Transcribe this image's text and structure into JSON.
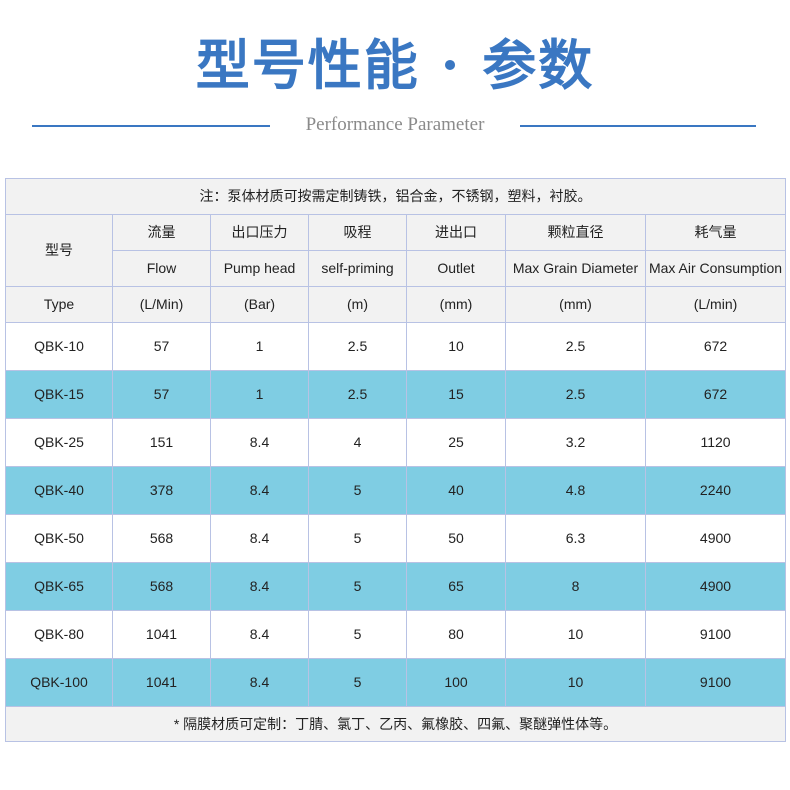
{
  "header": {
    "title": "型号性能 · 参数",
    "subtitle": "Performance Parameter",
    "accent": "#3a77c2"
  },
  "table": {
    "note": "注：泵体材质可按需定制铸铁，铝合金，不锈钢，塑料，衬胶。",
    "model_cn": "型号",
    "model_en": "Type",
    "columns": [
      {
        "cn": "流量",
        "en": "Flow",
        "unit": "(L/Min)"
      },
      {
        "cn": "出口压力",
        "en": "Pump head",
        "unit": "(Bar)"
      },
      {
        "cn": "吸程",
        "en": "self-priming",
        "unit": "(m)"
      },
      {
        "cn": "进出口",
        "en": "Outlet",
        "unit": "(mm)"
      },
      {
        "cn": "颗粒直径",
        "en": "Max Grain Diameter",
        "unit": "(mm)"
      },
      {
        "cn": "耗气量",
        "en": "Max Air Consumption",
        "unit": "(L/min)"
      }
    ],
    "rows": [
      [
        "QBK-10",
        "57",
        "1",
        "2.5",
        "10",
        "2.5",
        "672"
      ],
      [
        "QBK-15",
        "57",
        "1",
        "2.5",
        "15",
        "2.5",
        "672"
      ],
      [
        "QBK-25",
        "151",
        "8.4",
        "4",
        "25",
        "3.2",
        "1120"
      ],
      [
        "QBK-40",
        "378",
        "8.4",
        "5",
        "40",
        "4.8",
        "2240"
      ],
      [
        "QBK-50",
        "568",
        "8.4",
        "5",
        "50",
        "6.3",
        "4900"
      ],
      [
        "QBK-65",
        "568",
        "8.4",
        "5",
        "65",
        "8",
        "4900"
      ],
      [
        "QBK-80",
        "1041",
        "8.4",
        "5",
        "80",
        "10",
        "9100"
      ],
      [
        "QBK-100",
        "1041",
        "8.4",
        "5",
        "100",
        "10",
        "9100"
      ]
    ],
    "footer": "* 隔膜材质可定制：丁腈、氯丁、乙丙、氟橡胶、四氟、聚醚弹性体等。",
    "highlight_color": "#7fcde3"
  }
}
